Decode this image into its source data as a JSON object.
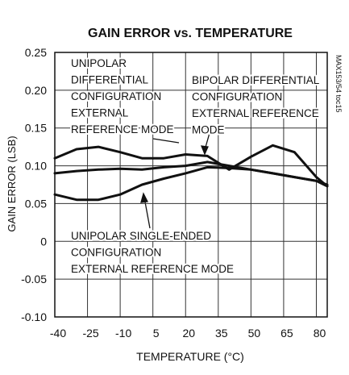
{
  "chart_data": {
    "type": "line",
    "title": "GAIN ERROR vs. TEMPERATURE",
    "xlabel": "TEMPERATURE (°C)",
    "ylabel": "GAIN ERROR (LSB)",
    "watermark": "MAX153/54 toc15",
    "x": [
      -40,
      -30,
      -20,
      -10,
      0,
      10,
      20,
      30,
      40,
      50,
      60,
      70,
      80,
      85
    ],
    "series": [
      {
        "color": "#111111",
        "values": [
          0.11,
          0.122,
          0.125,
          0.118,
          0.11,
          0.11,
          0.115,
          0.113,
          0.095,
          0.112,
          0.127,
          0.118,
          0.085,
          0.073
        ]
      },
      {
        "color": "#111111",
        "values": [
          0.09,
          0.093,
          0.095,
          0.096,
          0.095,
          0.098,
          0.1,
          0.105,
          0.1,
          0.095,
          0.09,
          0.085,
          0.08,
          0.075
        ]
      },
      {
        "color": "#111111",
        "values": [
          0.062,
          0.055,
          0.055,
          0.062,
          0.075,
          0.083,
          0.09,
          0.098,
          0.097,
          0.095,
          0.09,
          0.085,
          0.08,
          0.073
        ]
      }
    ],
    "xlim": [
      -40,
      85
    ],
    "xticks": [
      -40,
      -25,
      -10,
      5,
      20,
      35,
      50,
      65,
      80
    ],
    "ylim": [
      -0.1,
      0.25
    ],
    "yticks": [
      {
        "value": -0.1,
        "label": "-0.10"
      },
      -0.05,
      0,
      0.05,
      {
        "value": 0.1,
        "label": "0.10"
      },
      0.15,
      {
        "value": 0.2,
        "label": "0.20"
      },
      0.25
    ],
    "grid": true,
    "annotations": [
      {
        "lines": [
          "UNIPOLAR",
          "DIFFERENTIAL",
          "CONFIGURATION",
          "EXTERNAL",
          "REFERENCE MODE"
        ]
      },
      {
        "lines": [
          "BIPOLAR DIFFERENTIAL",
          "CONFIGURATION",
          "EXTERNAL REFERENCE",
          "MODE"
        ]
      },
      {
        "lines": [
          "UNIPOLAR SINGLE-ENDED",
          "CONFIGURATION",
          "EXTERNAL REFERENCE MODE"
        ]
      }
    ]
  }
}
